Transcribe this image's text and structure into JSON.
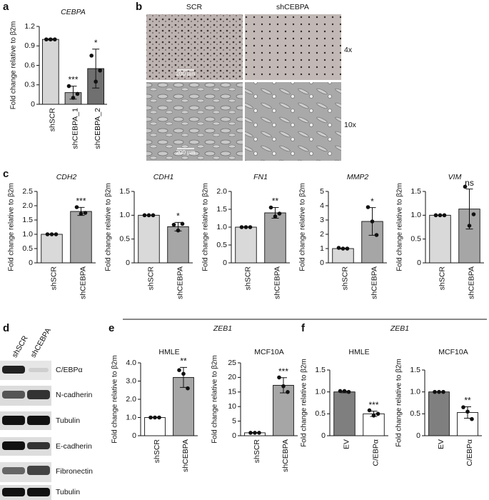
{
  "figure": {
    "panel_labels": [
      "a",
      "b",
      "c",
      "d",
      "e",
      "f"
    ],
    "e_header": "ZEB1",
    "f_header": "ZEB1",
    "micro": {
      "columns": [
        "SCR",
        "shCEBPA"
      ],
      "rows": [
        "4x",
        "10x"
      ],
      "scale_bar": "200 µm"
    },
    "blot": {
      "lanes": [
        "shSCR",
        "shCEBPA"
      ],
      "proteins": [
        "C/EBPα",
        "N-cadherin",
        "Tubulin",
        "E-cadherin",
        "Fibronectin",
        "Tubulin"
      ]
    }
  },
  "chart_data": [
    {
      "type": "bar",
      "title": "CEBPA",
      "ylabel": "Fold change relative to β2m",
      "categories": [
        "shSCR",
        "shCEBPA_1",
        "shCEBPA_2"
      ],
      "values": [
        1.0,
        0.18,
        0.55
      ],
      "errors": [
        0.01,
        0.1,
        0.3
      ],
      "points": [
        [
          1,
          1,
          1
        ],
        [
          0.28,
          0.1,
          0.16
        ],
        [
          0.75,
          0.35,
          0.52
        ]
      ],
      "colors": [
        "#d6d6d6",
        "#a0a0a0",
        "#707070"
      ],
      "annotations": [
        null,
        "***",
        "*"
      ],
      "ylim": [
        0,
        1.2
      ],
      "yticks": [
        0,
        0.3,
        0.6,
        0.9,
        1.2
      ]
    },
    {
      "type": "bar",
      "title": "CDH2",
      "ylabel": "Fold change relative to β2m",
      "categories": [
        "shSCR",
        "shCEBPA"
      ],
      "values": [
        1.0,
        1.8
      ],
      "errors": [
        0.01,
        0.14
      ],
      "points": [
        [
          1,
          1,
          1
        ],
        [
          1.95,
          1.72,
          1.75
        ]
      ],
      "colors": [
        "#d9d9d9",
        "#a6a6a6"
      ],
      "annotations": [
        null,
        "***"
      ],
      "ylim": [
        0,
        2.5
      ],
      "yticks": [
        0,
        0.5,
        {
          "value": 1,
          "label": "1.0"
        },
        1.5,
        {
          "value": 2,
          "label": "2.0"
        },
        2.5
      ]
    },
    {
      "type": "bar",
      "title": "CDH1",
      "ylabel": "Fold change relative to β2m",
      "categories": [
        "shSCR",
        "shCEBPA"
      ],
      "values": [
        1.0,
        0.76
      ],
      "errors": [
        0.005,
        0.09
      ],
      "points": [
        [
          1,
          1,
          1
        ],
        [
          0.8,
          0.68,
          0.82
        ]
      ],
      "colors": [
        "#d9d9d9",
        "#a6a6a6"
      ],
      "annotations": [
        null,
        "*"
      ],
      "ylim": [
        0,
        1.5
      ],
      "yticks": [
        0,
        0.5,
        {
          "value": 1,
          "label": "1.0"
        },
        1.5
      ]
    },
    {
      "type": "bar",
      "title": "FN1",
      "ylabel": "Fold change relative to β2m",
      "categories": [
        "shSCR",
        "shCEBPA"
      ],
      "values": [
        1.0,
        1.4
      ],
      "errors": [
        0.005,
        0.15
      ],
      "points": [
        [
          1,
          1,
          1
        ],
        [
          1.55,
          1.3,
          1.38
        ]
      ],
      "colors": [
        "#d9d9d9",
        "#a6a6a6"
      ],
      "annotations": [
        null,
        "**"
      ],
      "ylim": [
        0,
        2
      ],
      "yticks": [
        0,
        0.5,
        {
          "value": 1,
          "label": "1.0"
        },
        1.5,
        {
          "value": 2,
          "label": "2.0"
        }
      ]
    },
    {
      "type": "bar",
      "title": "MMP2",
      "ylabel": "Fold change relative to β2m",
      "categories": [
        "shSCR",
        "shCEBPA"
      ],
      "values": [
        1.0,
        2.9
      ],
      "errors": [
        0.03,
        0.97
      ],
      "points": [
        [
          1.05,
          1,
          1
        ],
        [
          3.9,
          2.9,
          1.95
        ]
      ],
      "colors": [
        "#d9d9d9",
        "#a6a6a6"
      ],
      "annotations": [
        null,
        "*"
      ],
      "ylim": [
        0,
        5
      ],
      "yticks": [
        0,
        1,
        2,
        3,
        4,
        5
      ]
    },
    {
      "type": "bar",
      "title": "VIM",
      "ylabel": "Fold change relative to β2m",
      "categories": [
        "shSCR",
        "shCEBPA"
      ],
      "values": [
        1.0,
        1.13
      ],
      "errors": [
        0.005,
        0.42
      ],
      "points": [
        [
          1,
          1,
          1
        ],
        [
          1.6,
          0.78,
          1.02
        ]
      ],
      "colors": [
        "#d9d9d9",
        "#a6a6a6"
      ],
      "annotations": [
        null,
        "ns"
      ],
      "ylim": [
        0,
        1.5
      ],
      "yticks": [
        0,
        0.5,
        {
          "value": 1,
          "label": "1.0"
        },
        1.5
      ]
    },
    {
      "type": "bar",
      "title": "HMLE",
      "ylabel": "Fold change relative to β2m",
      "categories": [
        "shSCR",
        "shCEBPA"
      ],
      "values": [
        1.0,
        3.2
      ],
      "errors": [
        0.01,
        0.55
      ],
      "points": [
        [
          1,
          1,
          1
        ],
        [
          3.6,
          3.4,
          2.6
        ]
      ],
      "colors": [
        "#ffffff",
        "#a6a6a6"
      ],
      "annotations": [
        null,
        "**"
      ],
      "ylim": [
        0,
        4
      ],
      "yticks": [
        0,
        {
          "value": 1,
          "label": "1.0"
        },
        {
          "value": 2,
          "label": "2.0"
        },
        {
          "value": 3,
          "label": "3.0"
        },
        {
          "value": 4,
          "label": "4.0"
        }
      ]
    },
    {
      "type": "bar",
      "title": "MCF10A",
      "ylabel": "Fold change relative to β2m",
      "categories": [
        "shSCR",
        "shCEBPA"
      ],
      "values": [
        1.0,
        17.3
      ],
      "errors": [
        0.1,
        2.6
      ],
      "points": [
        [
          1,
          1,
          1
        ],
        [
          20,
          17,
          15
        ]
      ],
      "colors": [
        "#ffffff",
        "#a6a6a6"
      ],
      "annotations": [
        null,
        "***"
      ],
      "ylim": [
        0,
        25
      ],
      "yticks": [
        0,
        5,
        10,
        15,
        20,
        25
      ]
    },
    {
      "type": "bar",
      "title": "HMLE",
      "ylabel": "Fold change relative to β2m",
      "categories": [
        "EV",
        "C/EBPα"
      ],
      "values": [
        1.0,
        0.5
      ],
      "errors": [
        0.02,
        0.06
      ],
      "points": [
        [
          1.02,
          1.02,
          1
        ],
        [
          0.58,
          0.46,
          0.5
        ]
      ],
      "colors": [
        "#7f7f7f",
        "#ffffff"
      ],
      "annotations": [
        null,
        "***"
      ],
      "ylim": [
        0,
        1.5
      ],
      "yticks": [
        0,
        0.5,
        {
          "value": 1,
          "label": "1.0"
        },
        1.5
      ]
    },
    {
      "type": "bar",
      "title": "MCF10A",
      "ylabel": "Fold change relative to β2m",
      "categories": [
        "EV",
        "C/EBPα"
      ],
      "values": [
        1.0,
        0.53
      ],
      "errors": [
        0.005,
        0.13
      ],
      "points": [
        [
          1,
          1,
          1
        ],
        [
          0.65,
          0.55,
          0.38
        ]
      ],
      "colors": [
        "#7f7f7f",
        "#ffffff"
      ],
      "annotations": [
        null,
        "**"
      ],
      "ylim": [
        0,
        1.5
      ],
      "yticks": [
        0,
        0.5,
        {
          "value": 1,
          "label": "1.0"
        },
        1.5
      ]
    }
  ]
}
